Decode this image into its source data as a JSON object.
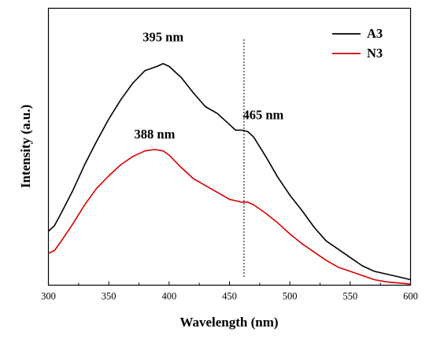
{
  "chart_data": {
    "type": "line",
    "xlabel": "Wavelength (nm)",
    "ylabel": "Intensity (a.u.)",
    "xlim": [
      300,
      600
    ],
    "ylim": [
      0,
      1
    ],
    "xticks": [
      "300",
      "350",
      "400",
      "450",
      "500",
      "550",
      "600"
    ],
    "yticks_shown": false,
    "grid": false,
    "legend_position": "top-right",
    "series": [
      {
        "name": "A3",
        "color": "#000000",
        "x": [
          300,
          305,
          310,
          320,
          330,
          340,
          350,
          360,
          370,
          380,
          390,
          395,
          400,
          410,
          420,
          430,
          440,
          450,
          455,
          460,
          465,
          470,
          480,
          490,
          500,
          510,
          520,
          530,
          540,
          550,
          560,
          570,
          580,
          590,
          600
        ],
        "y": [
          0.195,
          0.215,
          0.255,
          0.34,
          0.435,
          0.52,
          0.6,
          0.67,
          0.73,
          0.775,
          0.79,
          0.8,
          0.79,
          0.75,
          0.695,
          0.645,
          0.62,
          0.58,
          0.56,
          0.56,
          0.555,
          0.535,
          0.465,
          0.39,
          0.325,
          0.27,
          0.21,
          0.16,
          0.13,
          0.1,
          0.07,
          0.05,
          0.04,
          0.03,
          0.02
        ]
      },
      {
        "name": "N3",
        "color": "#d40000",
        "x": [
          300,
          305,
          310,
          320,
          330,
          340,
          350,
          360,
          370,
          380,
          388,
          395,
          400,
          410,
          420,
          430,
          440,
          450,
          460,
          465,
          470,
          480,
          490,
          500,
          510,
          520,
          530,
          540,
          550,
          560,
          570,
          580,
          590,
          600
        ],
        "y": [
          0.115,
          0.125,
          0.155,
          0.22,
          0.29,
          0.35,
          0.395,
          0.435,
          0.465,
          0.485,
          0.49,
          0.485,
          0.47,
          0.425,
          0.385,
          0.36,
          0.335,
          0.31,
          0.3,
          0.3,
          0.29,
          0.26,
          0.225,
          0.185,
          0.15,
          0.12,
          0.09,
          0.065,
          0.05,
          0.035,
          0.02,
          0.012,
          0.008,
          0.004
        ]
      }
    ],
    "annotations": [
      {
        "text": "395 nm",
        "x": 395,
        "y": 0.88
      },
      {
        "text": "465 nm",
        "x": 465,
        "y": 0.6
      },
      {
        "text": "388 nm",
        "x": 388,
        "y": 0.53
      }
    ],
    "reference_line": {
      "x": 462,
      "style": "dotted"
    }
  }
}
